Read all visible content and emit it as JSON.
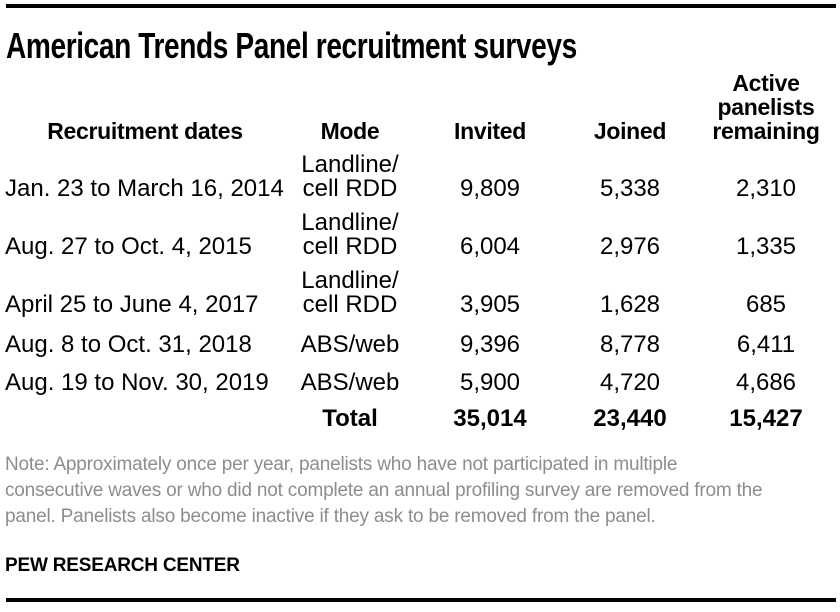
{
  "colors": {
    "background": "#ffffff",
    "text": "#000000",
    "note_gray": "#8d8d8d",
    "rule": "#000000"
  },
  "chart_data": {
    "type": "table",
    "title": "American Trends Panel recruitment surveys",
    "columns": [
      "Recruitment dates",
      "Mode",
      "Invited",
      "Joined",
      "Active panelists remaining"
    ],
    "rows": [
      {
        "dates": "Jan. 23 to March 16, 2014",
        "mode": "Landline/\ncell RDD",
        "invited": "9,809",
        "joined": "5,338",
        "remaining": "2,310"
      },
      {
        "dates": "Aug. 27 to Oct. 4, 2015",
        "mode": "Landline/\ncell RDD",
        "invited": "6,004",
        "joined": "2,976",
        "remaining": "1,335"
      },
      {
        "dates": "April 25 to June 4, 2017",
        "mode": "Landline/\ncell RDD",
        "invited": "3,905",
        "joined": "1,628",
        "remaining": "685"
      },
      {
        "dates": "Aug. 8 to Oct. 31, 2018",
        "mode": "ABS/web",
        "invited": "9,396",
        "joined": "8,778",
        "remaining": "6,411"
      },
      {
        "dates": "Aug. 19 to Nov. 30, 2019",
        "mode": "ABS/web",
        "invited": "5,900",
        "joined": "4,720",
        "remaining": "4,686"
      }
    ],
    "total": {
      "label": "Total",
      "invited": "35,014",
      "joined": "23,440",
      "remaining": "15,427"
    },
    "note_lines": [
      "Note: Approximately once per year, panelists who have not participated in multiple",
      "consecutive waves or who did not complete an annual profiling survey are removed from the",
      "panel. Panelists also become inactive if they ask to be removed from the panel."
    ],
    "source": "PEW RESEARCH CENTER"
  }
}
